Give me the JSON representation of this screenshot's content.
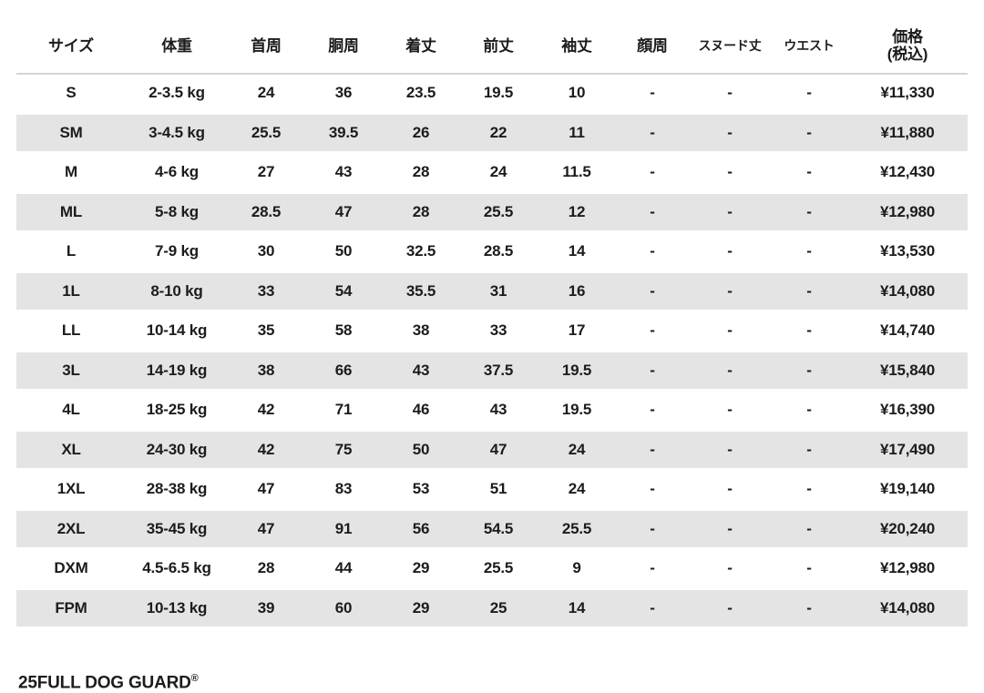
{
  "page": {
    "background_color": "#ffffff",
    "text_color": "#1c1c1c",
    "stripe_color": "#e4e4e4",
    "divider_color": "#d4d4d4"
  },
  "size_chart": {
    "columns": [
      {
        "key": "size",
        "label": "サイズ"
      },
      {
        "key": "weight",
        "label": "体重"
      },
      {
        "key": "neck",
        "label": "首周"
      },
      {
        "key": "girth",
        "label": "胴周"
      },
      {
        "key": "back-length",
        "label": "着丈"
      },
      {
        "key": "front-length",
        "label": "前丈"
      },
      {
        "key": "sleeve-length",
        "label": "袖丈"
      },
      {
        "key": "face",
        "label": "顔周"
      },
      {
        "key": "snood-length",
        "label": "スヌード丈"
      },
      {
        "key": "waist",
        "label": "ウエスト"
      },
      {
        "key": "price",
        "label": "価格",
        "label2": "(税込)"
      }
    ],
    "rows": [
      [
        "S",
        "2-3.5 kg",
        "24",
        "36",
        "23.5",
        "19.5",
        "10",
        "-",
        "-",
        "-",
        "¥11,330"
      ],
      [
        "SM",
        "3-4.5 kg",
        "25.5",
        "39.5",
        "26",
        "22",
        "11",
        "-",
        "-",
        "-",
        "¥11,880"
      ],
      [
        "M",
        "4-6 kg",
        "27",
        "43",
        "28",
        "24",
        "11.5",
        "-",
        "-",
        "-",
        "¥12,430"
      ],
      [
        "ML",
        "5-8 kg",
        "28.5",
        "47",
        "28",
        "25.5",
        "12",
        "-",
        "-",
        "-",
        "¥12,980"
      ],
      [
        "L",
        "7-9 kg",
        "30",
        "50",
        "32.5",
        "28.5",
        "14",
        "-",
        "-",
        "-",
        "¥13,530"
      ],
      [
        "1L",
        "8-10 kg",
        "33",
        "54",
        "35.5",
        "31",
        "16",
        "-",
        "-",
        "-",
        "¥14,080"
      ],
      [
        "LL",
        "10-14 kg",
        "35",
        "58",
        "38",
        "33",
        "17",
        "-",
        "-",
        "-",
        "¥14,740"
      ],
      [
        "3L",
        "14-19 kg",
        "38",
        "66",
        "43",
        "37.5",
        "19.5",
        "-",
        "-",
        "-",
        "¥15,840"
      ],
      [
        "4L",
        "18-25 kg",
        "42",
        "71",
        "46",
        "43",
        "19.5",
        "-",
        "-",
        "-",
        "¥16,390"
      ],
      [
        "XL",
        "24-30 kg",
        "42",
        "75",
        "50",
        "47",
        "24",
        "-",
        "-",
        "-",
        "¥17,490"
      ],
      [
        "1XL",
        "28-38 kg",
        "47",
        "83",
        "53",
        "51",
        "24",
        "-",
        "-",
        "-",
        "¥19,140"
      ],
      [
        "2XL",
        "35-45 kg",
        "47",
        "91",
        "56",
        "54.5",
        "25.5",
        "-",
        "-",
        "-",
        "¥20,240"
      ],
      [
        "DXM",
        "4.5-6.5 kg",
        "28",
        "44",
        "29",
        "25.5",
        "9",
        "-",
        "-",
        "-",
        "¥12,980"
      ],
      [
        "FPM",
        "10-13 kg",
        "39",
        "60",
        "29",
        "25",
        "14",
        "-",
        "-",
        "-",
        "¥14,080"
      ]
    ]
  },
  "footer": {
    "brand": "25FULL DOG GUARD",
    "brand_mark": "®"
  }
}
